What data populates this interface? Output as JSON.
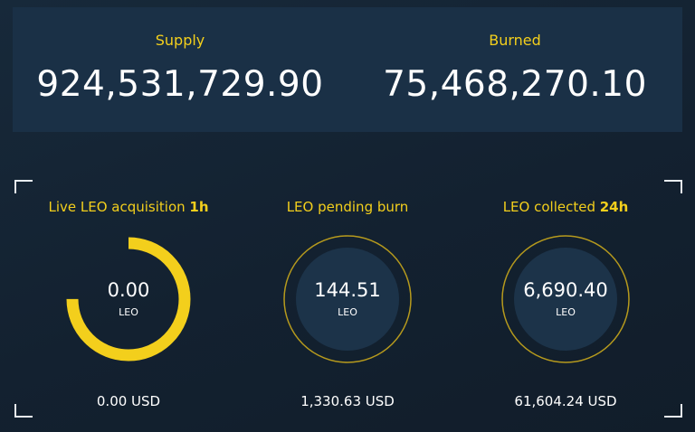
{
  "supply": {
    "label": "Supply",
    "value": "924,531,729.90"
  },
  "burned": {
    "label": "Burned",
    "value": "75,468,270.10"
  },
  "metrics": [
    {
      "title_prefix": "Live LEO acquisition ",
      "title_bold": "1h",
      "value": "0.00",
      "unit": "LEO",
      "usd": "0.00 USD",
      "progress": 0.75
    },
    {
      "title_prefix": "LEO pending burn",
      "title_bold": "",
      "value": "144.51",
      "unit": "LEO",
      "usd": "1,330.63 USD"
    },
    {
      "title_prefix": "LEO collected ",
      "title_bold": "24h",
      "value": "6,690.40",
      "unit": "LEO",
      "usd": "61,604.24 USD"
    }
  ],
  "colors": {
    "accent": "#f3cf1c",
    "ring_track": "#b69a1d",
    "disc_fill": "#1c3349",
    "panel": "#1a3046"
  }
}
